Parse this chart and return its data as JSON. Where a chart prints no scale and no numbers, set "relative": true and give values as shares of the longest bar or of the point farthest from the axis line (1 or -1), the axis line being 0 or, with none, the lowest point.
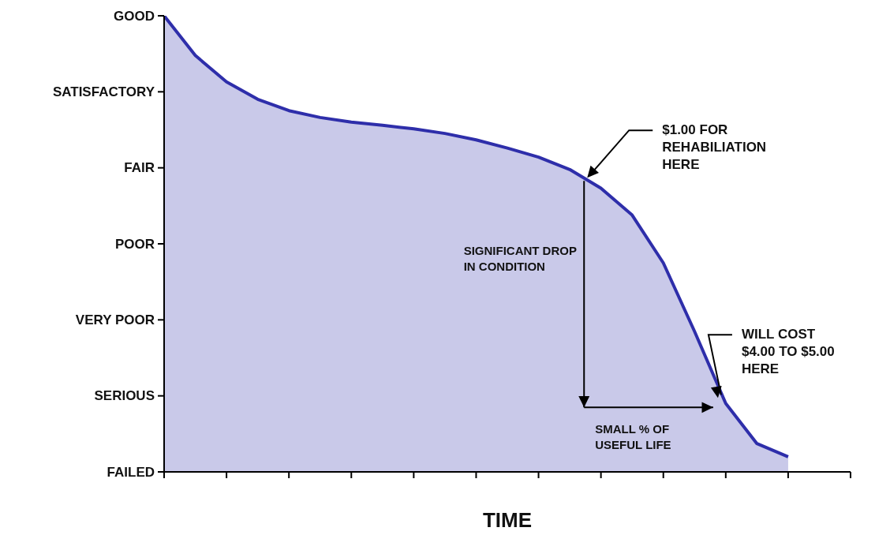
{
  "chart_data": {
    "type": "area",
    "xlabel": "TIME",
    "relative": true,
    "categories": [
      null,
      null,
      null,
      null,
      null,
      null,
      null,
      null,
      null,
      null,
      null,
      null,
      null,
      null,
      null,
      null,
      null,
      null,
      null,
      null,
      null,
      null,
      null
    ],
    "marker": "none",
    "series": [
      {
        "color": "#2e2eaa",
        "values": [
          1,
          0.913,
          0.855,
          0.817,
          0.792,
          0.777,
          0.767,
          0.76,
          0.752,
          0.742,
          0.728,
          0.71,
          0.69,
          0.663,
          0.622,
          0.563,
          0.458,
          0.308,
          0.15,
          0.062,
          0.033,
          null,
          null
        ]
      }
    ],
    "annotations": [
      "$1.00 FOR REHABILIATION HERE",
      "WILL COST $4.00 TO $5.00 HERE",
      "SIGNIFICANT DROP IN CONDITION",
      "SMALL % OF USEFUL LIFE",
      "GOOD",
      "SATISFACTORY",
      "FAIR",
      "POOR",
      "VERY POOR",
      "SERIOUS",
      "FAILED"
    ]
  }
}
